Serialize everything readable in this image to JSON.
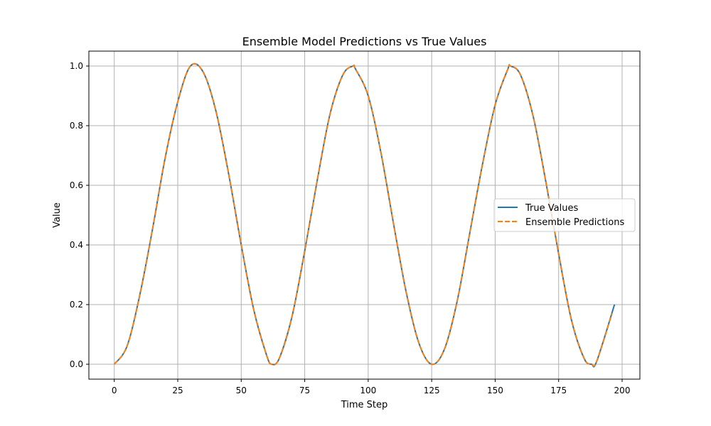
{
  "chart_data": {
    "type": "line",
    "title": "Ensemble Model Predictions vs True Values",
    "xlabel": "Time Step",
    "ylabel": "Value",
    "xlim": [
      -10,
      207
    ],
    "ylim": [
      -0.05,
      1.05
    ],
    "xticks": [
      0,
      25,
      50,
      75,
      100,
      125,
      150,
      175,
      200
    ],
    "yticks": [
      0.0,
      0.2,
      0.4,
      0.6,
      0.8,
      1.0
    ],
    "grid": true,
    "legend_position": "center-right",
    "series": [
      {
        "name": "True Values",
        "color": "#1f77b4",
        "line_style": "solid",
        "x": [
          0,
          5,
          10,
          15,
          20,
          25,
          30,
          35,
          40,
          45,
          50,
          55,
          60,
          62,
          65,
          70,
          75,
          80,
          85,
          90,
          94,
          95,
          100,
          105,
          110,
          115,
          120,
          125,
          130,
          135,
          140,
          145,
          150,
          155,
          156,
          160,
          165,
          170,
          175,
          180,
          185,
          188,
          190,
          197
        ],
        "y": [
          0.0,
          0.06,
          0.23,
          0.45,
          0.69,
          0.88,
          1.0,
          0.98,
          0.85,
          0.64,
          0.4,
          0.18,
          0.03,
          0.0,
          0.02,
          0.16,
          0.38,
          0.62,
          0.84,
          0.97,
          1.0,
          0.99,
          0.9,
          0.71,
          0.47,
          0.24,
          0.07,
          0.0,
          0.05,
          0.21,
          0.44,
          0.67,
          0.87,
          0.99,
          1.0,
          0.97,
          0.83,
          0.61,
          0.37,
          0.15,
          0.02,
          0.0,
          0.01,
          0.2
        ]
      },
      {
        "name": "Ensemble Predictions",
        "color": "#ff7f0e",
        "line_style": "dashed",
        "x": [
          0,
          5,
          10,
          15,
          20,
          25,
          30,
          35,
          40,
          45,
          50,
          55,
          60,
          62,
          65,
          70,
          75,
          80,
          85,
          90,
          94,
          95,
          100,
          105,
          110,
          115,
          120,
          125,
          130,
          135,
          140,
          145,
          150,
          155,
          156,
          160,
          165,
          170,
          175,
          180,
          185,
          188,
          190,
          196
        ],
        "y": [
          0.0,
          0.06,
          0.23,
          0.45,
          0.69,
          0.88,
          1.0,
          0.98,
          0.85,
          0.64,
          0.4,
          0.18,
          0.03,
          0.0,
          0.02,
          0.16,
          0.38,
          0.62,
          0.84,
          0.97,
          1.0,
          0.99,
          0.9,
          0.71,
          0.47,
          0.24,
          0.07,
          0.0,
          0.05,
          0.21,
          0.44,
          0.67,
          0.87,
          0.99,
          1.0,
          0.97,
          0.83,
          0.61,
          0.37,
          0.15,
          0.02,
          0.0,
          0.01,
          0.17
        ]
      }
    ]
  }
}
